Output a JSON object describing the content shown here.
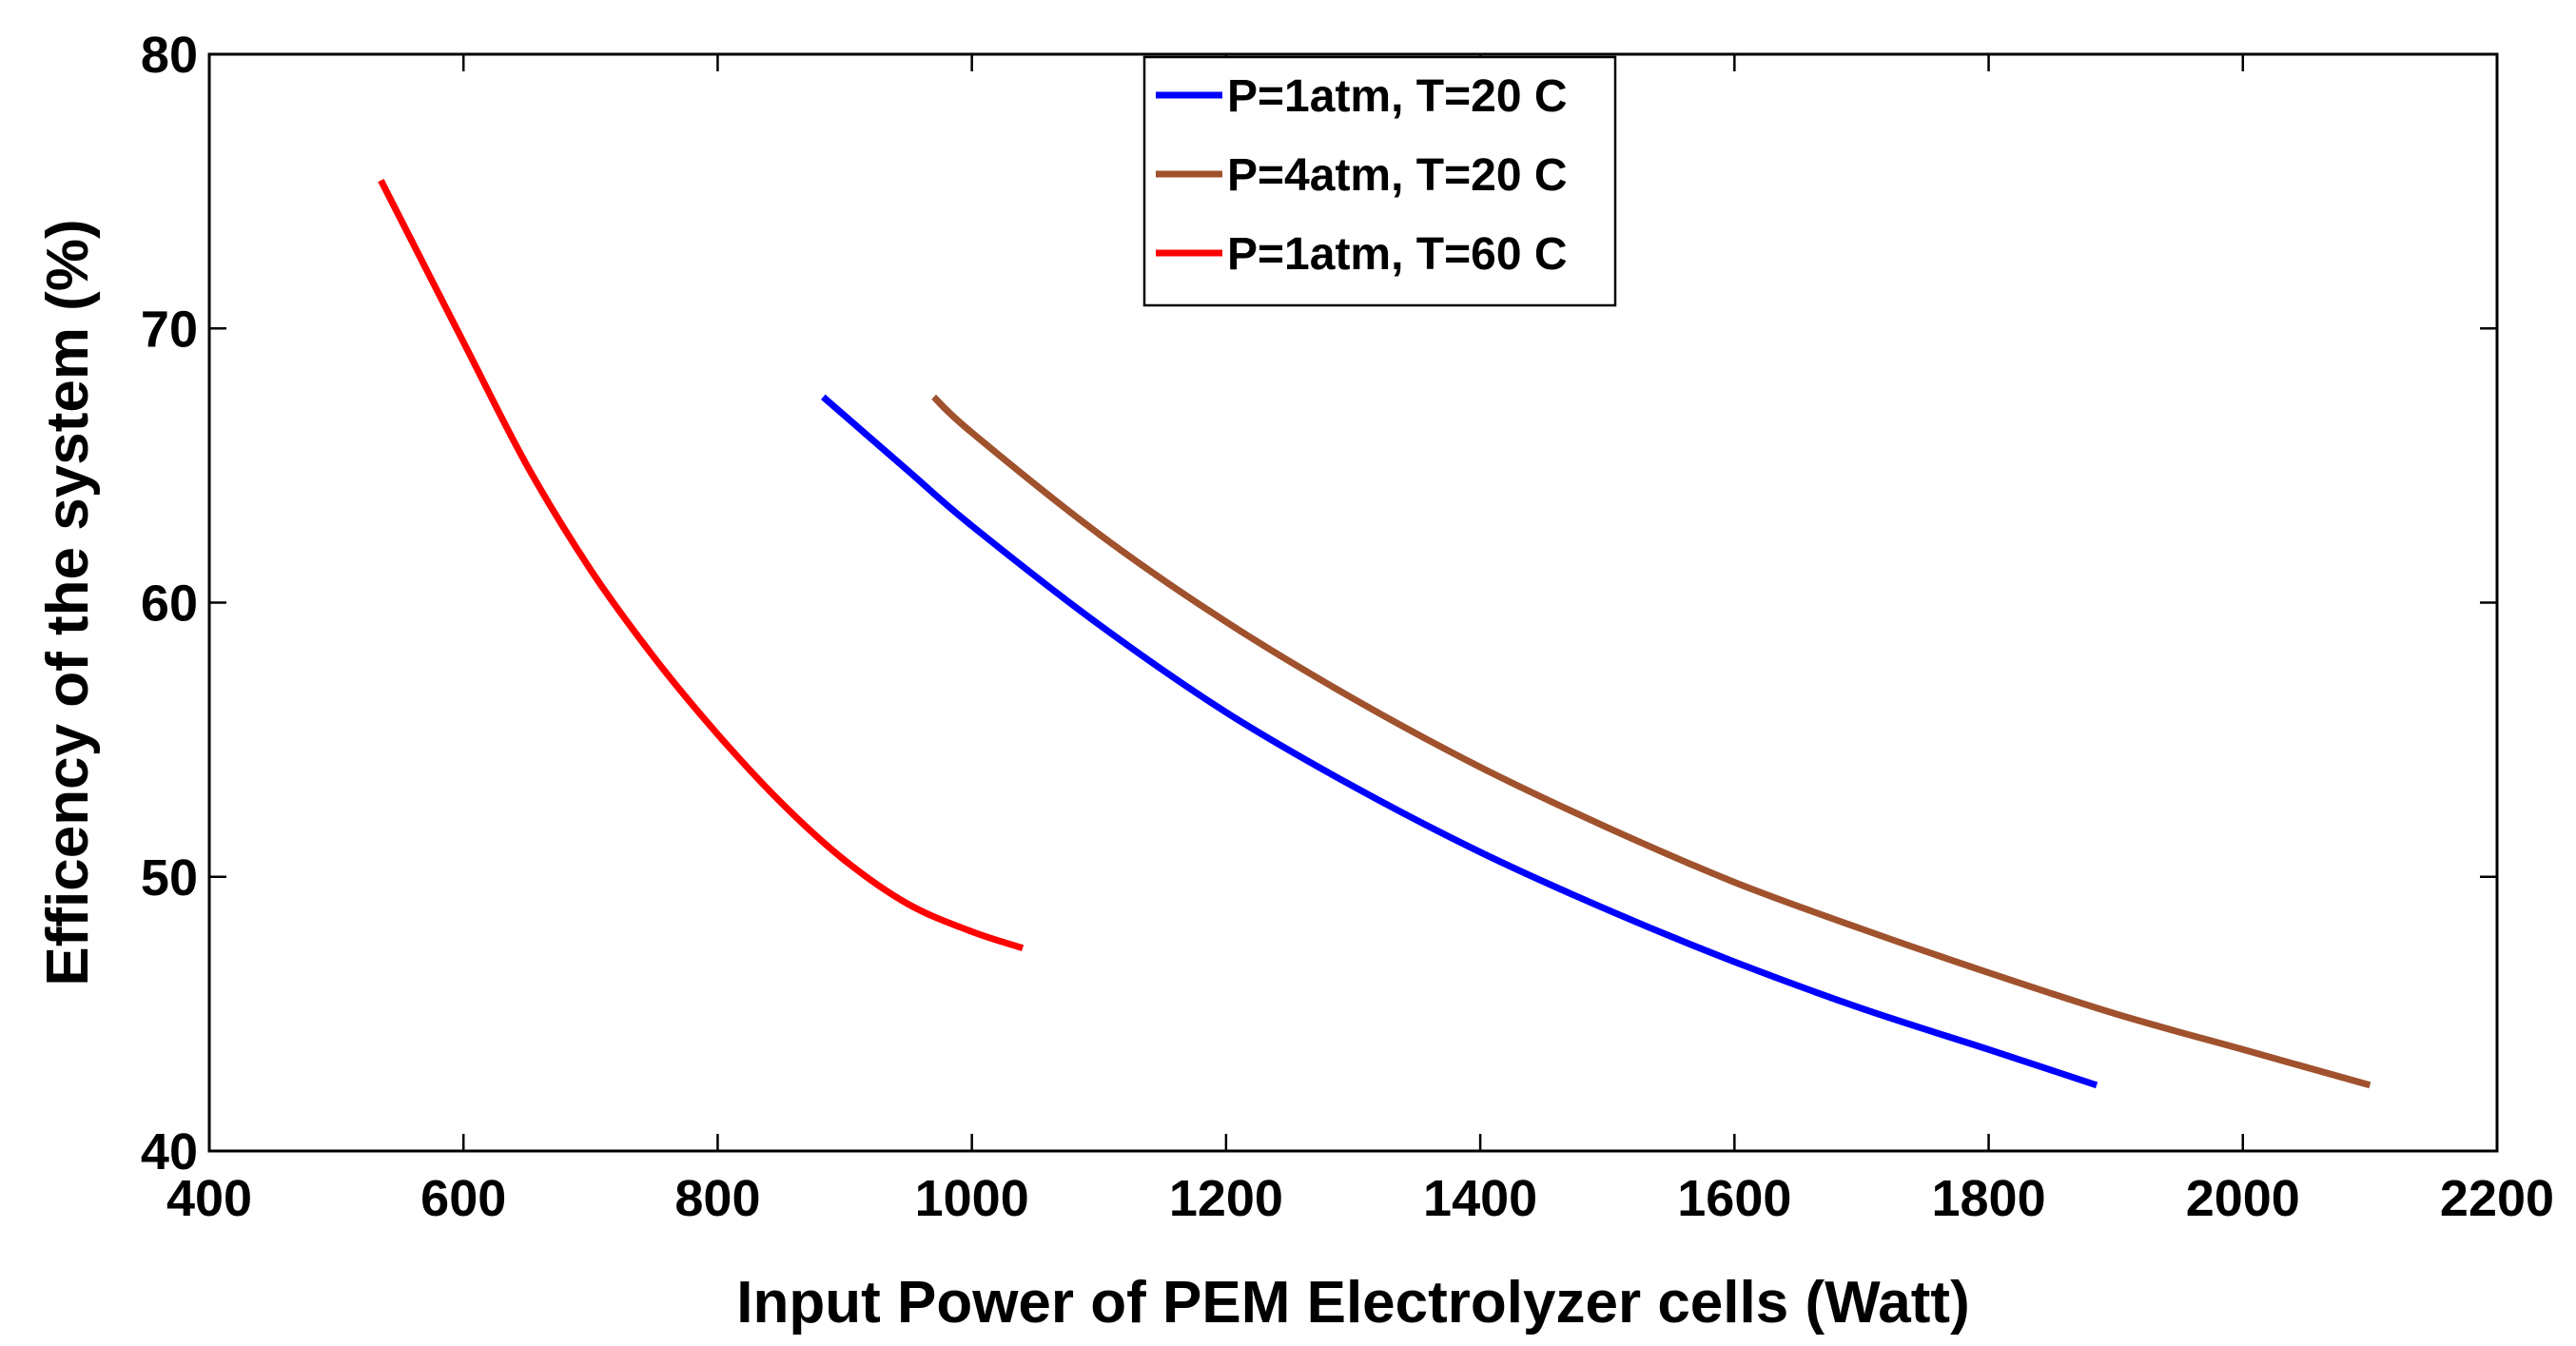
{
  "chart_data": {
    "type": "line",
    "title": "",
    "xlabel": "Input Power of PEM Electrolyzer cells (Watt)",
    "ylabel": "Efficency of the system (%)",
    "xlim": [
      400,
      2200
    ],
    "ylim": [
      40,
      80
    ],
    "xticks": [
      400,
      600,
      800,
      1000,
      1200,
      1400,
      1600,
      1800,
      2000,
      2200
    ],
    "yticks": [
      40,
      50,
      60,
      70,
      80
    ],
    "grid": false,
    "legend_position": "top-center",
    "series": [
      {
        "name": "P=1atm, T=20 C",
        "color": "#0000ff",
        "x": [
          883,
          950,
          1000,
          1100,
          1200,
          1300,
          1400,
          1500,
          1600,
          1700,
          1800,
          1885
        ],
        "y": [
          67.5,
          64.8,
          62.8,
          59.2,
          56.0,
          53.3,
          50.9,
          48.8,
          46.9,
          45.2,
          43.7,
          42.4
        ]
      },
      {
        "name": "P=4atm, T=20 C",
        "color": "#a0522d",
        "x": [
          970,
          1000,
          1100,
          1200,
          1300,
          1400,
          1500,
          1600,
          1700,
          1800,
          1900,
          2000,
          2100
        ],
        "y": [
          67.5,
          66.2,
          62.5,
          59.3,
          56.5,
          54.0,
          51.8,
          49.8,
          48.1,
          46.5,
          45.0,
          43.7,
          42.4
        ]
      },
      {
        "name": "P=1atm, T=60 C",
        "color": "#ff0000",
        "x": [
          535,
          600,
          650,
          700,
          750,
          800,
          850,
          900,
          950,
          1000,
          1040
        ],
        "y": [
          75.4,
          69.5,
          65.0,
          61.2,
          58.0,
          55.2,
          52.7,
          50.6,
          49.0,
          48.0,
          47.4
        ]
      }
    ]
  }
}
